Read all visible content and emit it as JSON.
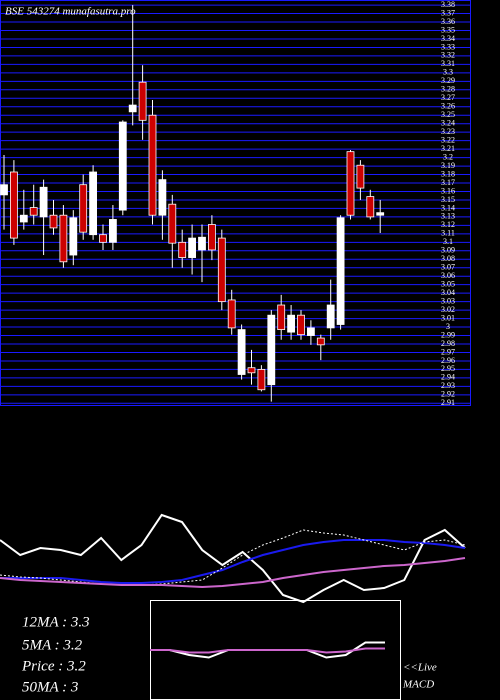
{
  "chart_data": [
    {
      "type": "candlestick",
      "title": "BSE 543274 munafasutra.pro",
      "up_color": "#ffffff",
      "down_color": "#cc0000",
      "grid_color": "#1a1aff",
      "grid": true,
      "ylim": [
        2.908,
        3.386
      ],
      "yticks": [
        2.91,
        2.92,
        2.93,
        2.94,
        2.95,
        2.96,
        2.97,
        2.98,
        2.99,
        3.0,
        3.01,
        3.02,
        3.03,
        3.04,
        3.05,
        3.06,
        3.07,
        3.08,
        3.09,
        3.1,
        3.11,
        3.12,
        3.13,
        3.14,
        3.15,
        3.16,
        3.17,
        3.18,
        3.19,
        3.2,
        3.21,
        3.22,
        3.23,
        3.24,
        3.25,
        3.26,
        3.27,
        3.28,
        3.29,
        3.3,
        3.31,
        3.32,
        3.33,
        3.34,
        3.35,
        3.36,
        3.37,
        3.38
      ],
      "open": [
        3.156,
        3.183,
        3.124,
        3.141,
        3.13,
        3.132,
        3.132,
        3.085,
        3.168,
        3.109,
        3.109,
        3.1,
        3.138,
        3.254,
        3.289,
        3.25,
        3.132,
        3.145,
        3.1,
        3.082,
        3.091,
        3.121,
        3.105,
        3.032,
        2.944,
        2.952,
        2.95,
        2.932,
        3.026,
        2.994,
        3.014,
        2.99,
        2.987,
        2.999,
        3.003,
        3.207,
        3.191,
        3.154,
        3.132
      ],
      "high": [
        3.203,
        3.197,
        3.162,
        3.168,
        3.174,
        3.15,
        3.144,
        3.138,
        3.18,
        3.191,
        3.121,
        3.144,
        3.244,
        3.38,
        3.309,
        3.268,
        3.185,
        3.156,
        3.115,
        3.121,
        3.121,
        3.132,
        3.115,
        3.044,
        3.003,
        2.973,
        2.955,
        3.02,
        3.038,
        3.026,
        3.02,
        3.008,
        2.991,
        3.056,
        3.132,
        3.209,
        3.197,
        3.162,
        3.15
      ],
      "low": [
        3.115,
        3.097,
        3.115,
        3.121,
        3.085,
        3.109,
        3.07,
        3.073,
        3.103,
        3.103,
        3.091,
        3.091,
        3.132,
        3.238,
        3.221,
        3.121,
        3.103,
        3.07,
        3.07,
        3.062,
        3.053,
        3.079,
        3.02,
        2.991,
        2.938,
        2.932,
        2.924,
        2.912,
        2.985,
        2.985,
        2.985,
        2.979,
        2.961,
        2.985,
        2.997,
        3.127,
        3.15,
        3.127,
        3.111
      ],
      "close": [
        3.168,
        3.105,
        3.132,
        3.132,
        3.165,
        3.117,
        3.077,
        3.129,
        3.112,
        3.183,
        3.1,
        3.127,
        3.242,
        3.262,
        3.244,
        3.132,
        3.174,
        3.099,
        3.082,
        3.105,
        3.106,
        3.091,
        3.03,
        2.999,
        2.997,
        2.946,
        2.926,
        3.014,
        2.997,
        3.014,
        2.991,
        2.999,
        2.979,
        3.026,
        3.129,
        3.132,
        3.164,
        3.13,
        3.135
      ]
    },
    {
      "type": "line",
      "ylim": [
        0,
        110
      ],
      "annotations": [
        "12MA : 3.3",
        "5MA : 3.2",
        "Price : 3.2",
        "50MA : 3"
      ],
      "series": [
        {
          "color": "#ffffff",
          "values": [
            70,
            55,
            62,
            60,
            55,
            72,
            50,
            65,
            95,
            88,
            60,
            45,
            58,
            40,
            15,
            8,
            20,
            30,
            20,
            22,
            30,
            70,
            80,
            62
          ]
        },
        {
          "color": "#1a1aee",
          "values": [
            32,
            32,
            32,
            32,
            30,
            28,
            27,
            27,
            28,
            30,
            35,
            40,
            48,
            55,
            60,
            65,
            68,
            70,
            70,
            70,
            68,
            67,
            65,
            62
          ]
        },
        {
          "color": "#ffffff",
          "dash": true,
          "values": [
            35,
            33,
            32,
            30,
            28,
            26,
            25,
            25,
            26,
            28,
            30,
            42,
            55,
            65,
            72,
            80,
            77,
            75,
            70,
            65,
            60,
            68,
            70,
            65
          ]
        },
        {
          "color": "#cc66cc",
          "values": [
            32,
            30,
            29,
            28,
            27,
            26,
            25,
            25,
            25,
            24,
            23,
            24,
            26,
            28,
            32,
            35,
            38,
            40,
            42,
            44,
            45,
            47,
            49,
            52
          ]
        }
      ]
    },
    {
      "type": "line",
      "ylim": [
        -10,
        10
      ],
      "box": true,
      "annotations": [
        "<<Live",
        "MACD"
      ],
      "series": [
        {
          "color": "#ffffff",
          "values": [
            0,
            0,
            -1,
            -1.5,
            0,
            0,
            0,
            0,
            0,
            -1.5,
            -1,
            1.5,
            1.5
          ]
        },
        {
          "color": "#cc66cc",
          "values": [
            0,
            0,
            -0.5,
            -0.5,
            0,
            0,
            0,
            0,
            0,
            -0.5,
            -0.3,
            0.3,
            0.3
          ]
        }
      ]
    }
  ]
}
